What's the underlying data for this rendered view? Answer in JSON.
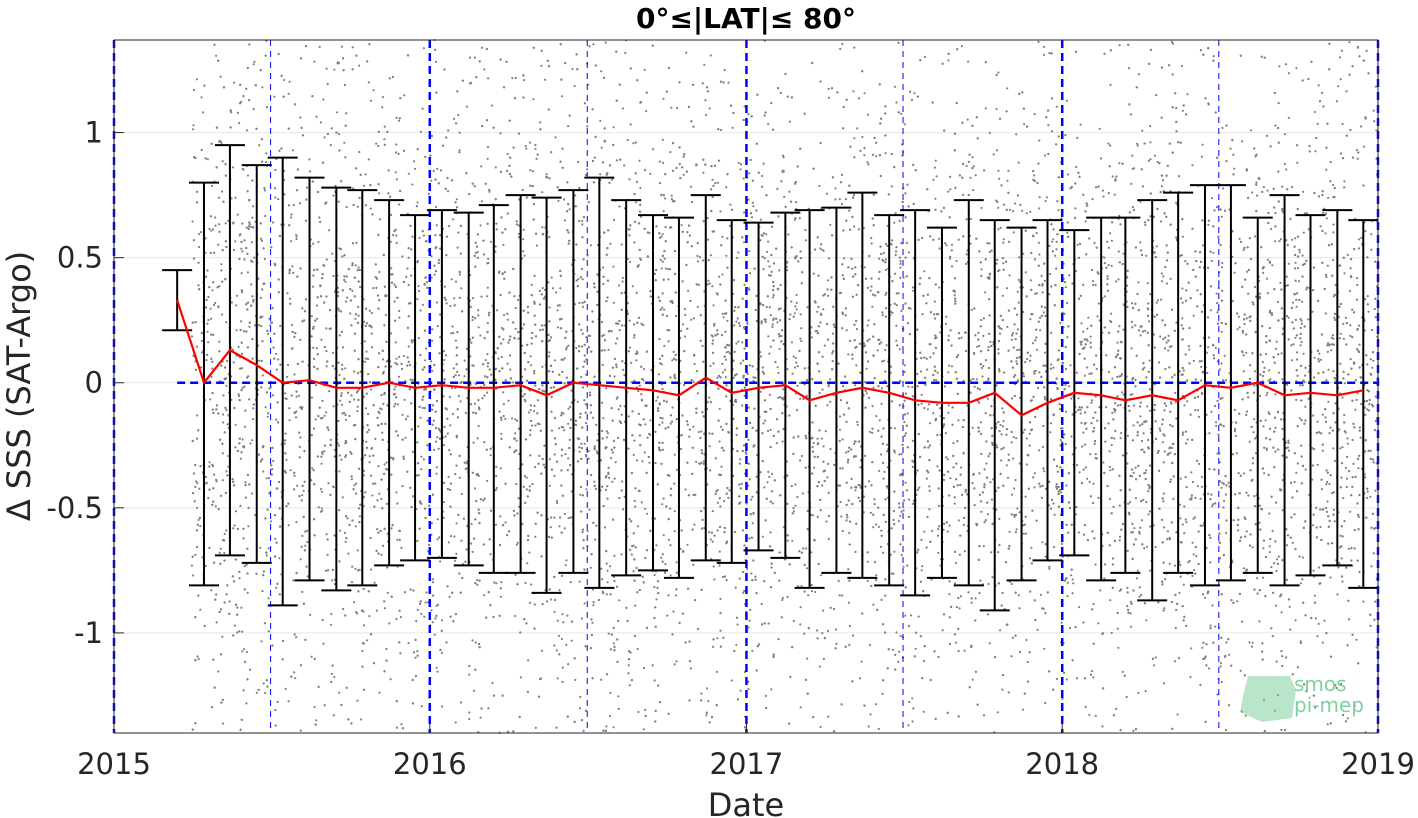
{
  "chart_data": {
    "type": "line",
    "title": "0°≤|LAT|≤ 80°",
    "xlabel": "Date",
    "ylabel": "Δ SSS (SAT-Argo)",
    "xlim": [
      "2015-01-01",
      "2019-01-01"
    ],
    "ylim": [
      -1.4,
      1.37
    ],
    "x_ticks": [
      "2015",
      "2016",
      "2017",
      "2018",
      "2019"
    ],
    "y_ticks": [
      "-1",
      "-0.5",
      "0",
      "0.5",
      "1"
    ],
    "grid": true,
    "scatter_color": "#808080",
    "mean_line_color": "#ff0000",
    "errorbar_color": "#000000",
    "reference_color": "#0000ff",
    "reference_y": 0,
    "scatter_start": "2015-04-01",
    "vertical_reference_lines": [
      "2015-01-01",
      "2015-07-01",
      "2016-01-01",
      "2016-07-01",
      "2017-01-01",
      "2017-07-01",
      "2018-01-01",
      "2018-07-01",
      "2019-01-01"
    ],
    "series": [
      {
        "dates": [
          "2015-03-15",
          "2015-04-15",
          "2015-05-15",
          "2015-06-15",
          "2015-07-15",
          "2015-08-15",
          "2015-09-15",
          "2015-10-15",
          "2015-11-15",
          "2015-12-15",
          "2016-01-15",
          "2016-02-15",
          "2016-03-15",
          "2016-04-15",
          "2016-05-15",
          "2016-06-15",
          "2016-07-15",
          "2016-08-15",
          "2016-09-15",
          "2016-10-15",
          "2016-11-15",
          "2016-12-15",
          "2017-01-15",
          "2017-02-15",
          "2017-03-15",
          "2017-04-15",
          "2017-05-15",
          "2017-06-15",
          "2017-07-15",
          "2017-08-15",
          "2017-09-15",
          "2017-10-15",
          "2017-11-15",
          "2017-12-15",
          "2018-01-15",
          "2018-02-15",
          "2018-03-15",
          "2018-04-15",
          "2018-05-15",
          "2018-06-15",
          "2018-07-15",
          "2018-08-15",
          "2018-09-15",
          "2018-10-15",
          "2018-11-15",
          "2018-12-15"
        ],
        "mean": [
          0.33,
          0.0,
          0.13,
          0.07,
          0.0,
          0.01,
          -0.02,
          -0.02,
          0.0,
          -0.02,
          -0.01,
          -0.02,
          -0.02,
          -0.01,
          -0.05,
          0.0,
          -0.01,
          -0.02,
          -0.03,
          -0.05,
          0.02,
          -0.04,
          -0.02,
          -0.01,
          -0.07,
          -0.04,
          -0.02,
          -0.04,
          -0.07,
          -0.08,
          -0.08,
          -0.04,
          -0.13,
          -0.08,
          -0.04,
          -0.05,
          -0.07,
          -0.05,
          -0.07,
          -0.01,
          -0.02,
          0.0,
          -0.05,
          -0.04,
          -0.05,
          -0.03
        ],
        "upper": [
          0.45,
          0.8,
          0.95,
          0.87,
          0.9,
          0.82,
          0.78,
          0.77,
          0.73,
          0.67,
          0.69,
          0.68,
          0.71,
          0.75,
          0.74,
          0.77,
          0.82,
          0.73,
          0.67,
          0.66,
          0.75,
          0.65,
          0.64,
          0.68,
          0.69,
          0.7,
          0.76,
          0.67,
          0.69,
          0.62,
          0.73,
          0.65,
          0.62,
          0.65,
          0.61,
          0.66,
          0.66,
          0.73,
          0.76,
          0.79,
          0.79,
          0.66,
          0.75,
          0.67,
          0.69,
          0.65
        ],
        "lower": [
          0.21,
          -0.81,
          -0.69,
          -0.72,
          -0.89,
          -0.79,
          -0.83,
          -0.81,
          -0.73,
          -0.71,
          -0.7,
          -0.73,
          -0.76,
          -0.76,
          -0.84,
          -0.76,
          -0.82,
          -0.77,
          -0.75,
          -0.78,
          -0.71,
          -0.72,
          -0.67,
          -0.7,
          -0.82,
          -0.76,
          -0.78,
          -0.81,
          -0.85,
          -0.78,
          -0.81,
          -0.91,
          -0.79,
          -0.71,
          -0.69,
          -0.79,
          -0.76,
          -0.87,
          -0.76,
          -0.81,
          -0.79,
          -0.76,
          -0.81,
          -0.77,
          -0.73,
          -0.82
        ]
      }
    ]
  },
  "logo": {
    "line1": "smos",
    "line2": "pi-mep"
  }
}
